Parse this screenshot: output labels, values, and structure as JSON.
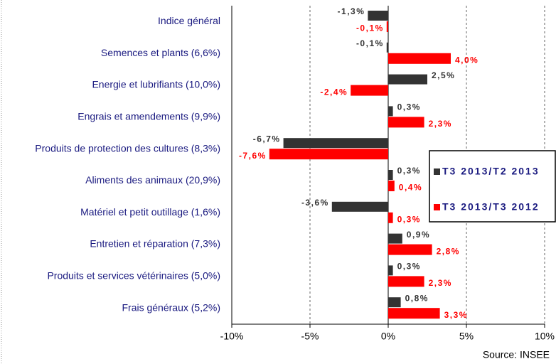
{
  "chart_data": {
    "type": "hbar",
    "categories": [
      "Indice général",
      "Semences et plants (6,6%)",
      "Energie et lubrifiants (10,0%)",
      "Engrais et amendements (9,9%)",
      "Produits de protection des cultures (8,3%)",
      "Aliments des animaux (20,9%)",
      "Matériel et petit outillage (1,6%)",
      "Entretien et réparation (7,3%)",
      "Produits et services vétérinaires (5,0%)",
      "Frais généraux (5,2%)"
    ],
    "series": [
      {
        "name": "T3 2013/T2 2013",
        "color": "#333333",
        "values": [
          -1.3,
          -0.1,
          2.5,
          0.3,
          -6.7,
          0.3,
          -3.6,
          0.9,
          0.3,
          0.8
        ],
        "value_labels": [
          "-1,3%",
          "-0,1%",
          "2,5%",
          "0,3%",
          "-6,7%",
          "0,3%",
          "-3,6%",
          "0,9%",
          "0,3%",
          "0,8%"
        ]
      },
      {
        "name": "T3 2013/T3 2012",
        "color": "#ff0000",
        "values": [
          -0.1,
          4.0,
          -2.4,
          2.3,
          -7.6,
          0.4,
          0.3,
          2.8,
          2.3,
          3.3
        ],
        "value_labels": [
          "-0,1%",
          "4,0%",
          "-2,4%",
          "2,3%",
          "-7,6%",
          "0,4%",
          "0,3%",
          "2,8%",
          "2,3%",
          "3,3%"
        ]
      }
    ],
    "xlim": [
      -10,
      10
    ],
    "xticks": [
      {
        "value": -10,
        "label": "-10%"
      },
      {
        "value": -5,
        "label": "-5%"
      },
      {
        "value": 0,
        "label": "0%"
      },
      {
        "value": 5,
        "label": "5%"
      },
      {
        "value": 10,
        "label": "10%"
      }
    ],
    "grid": true,
    "legend": "right",
    "source": "Source: INSEE"
  }
}
